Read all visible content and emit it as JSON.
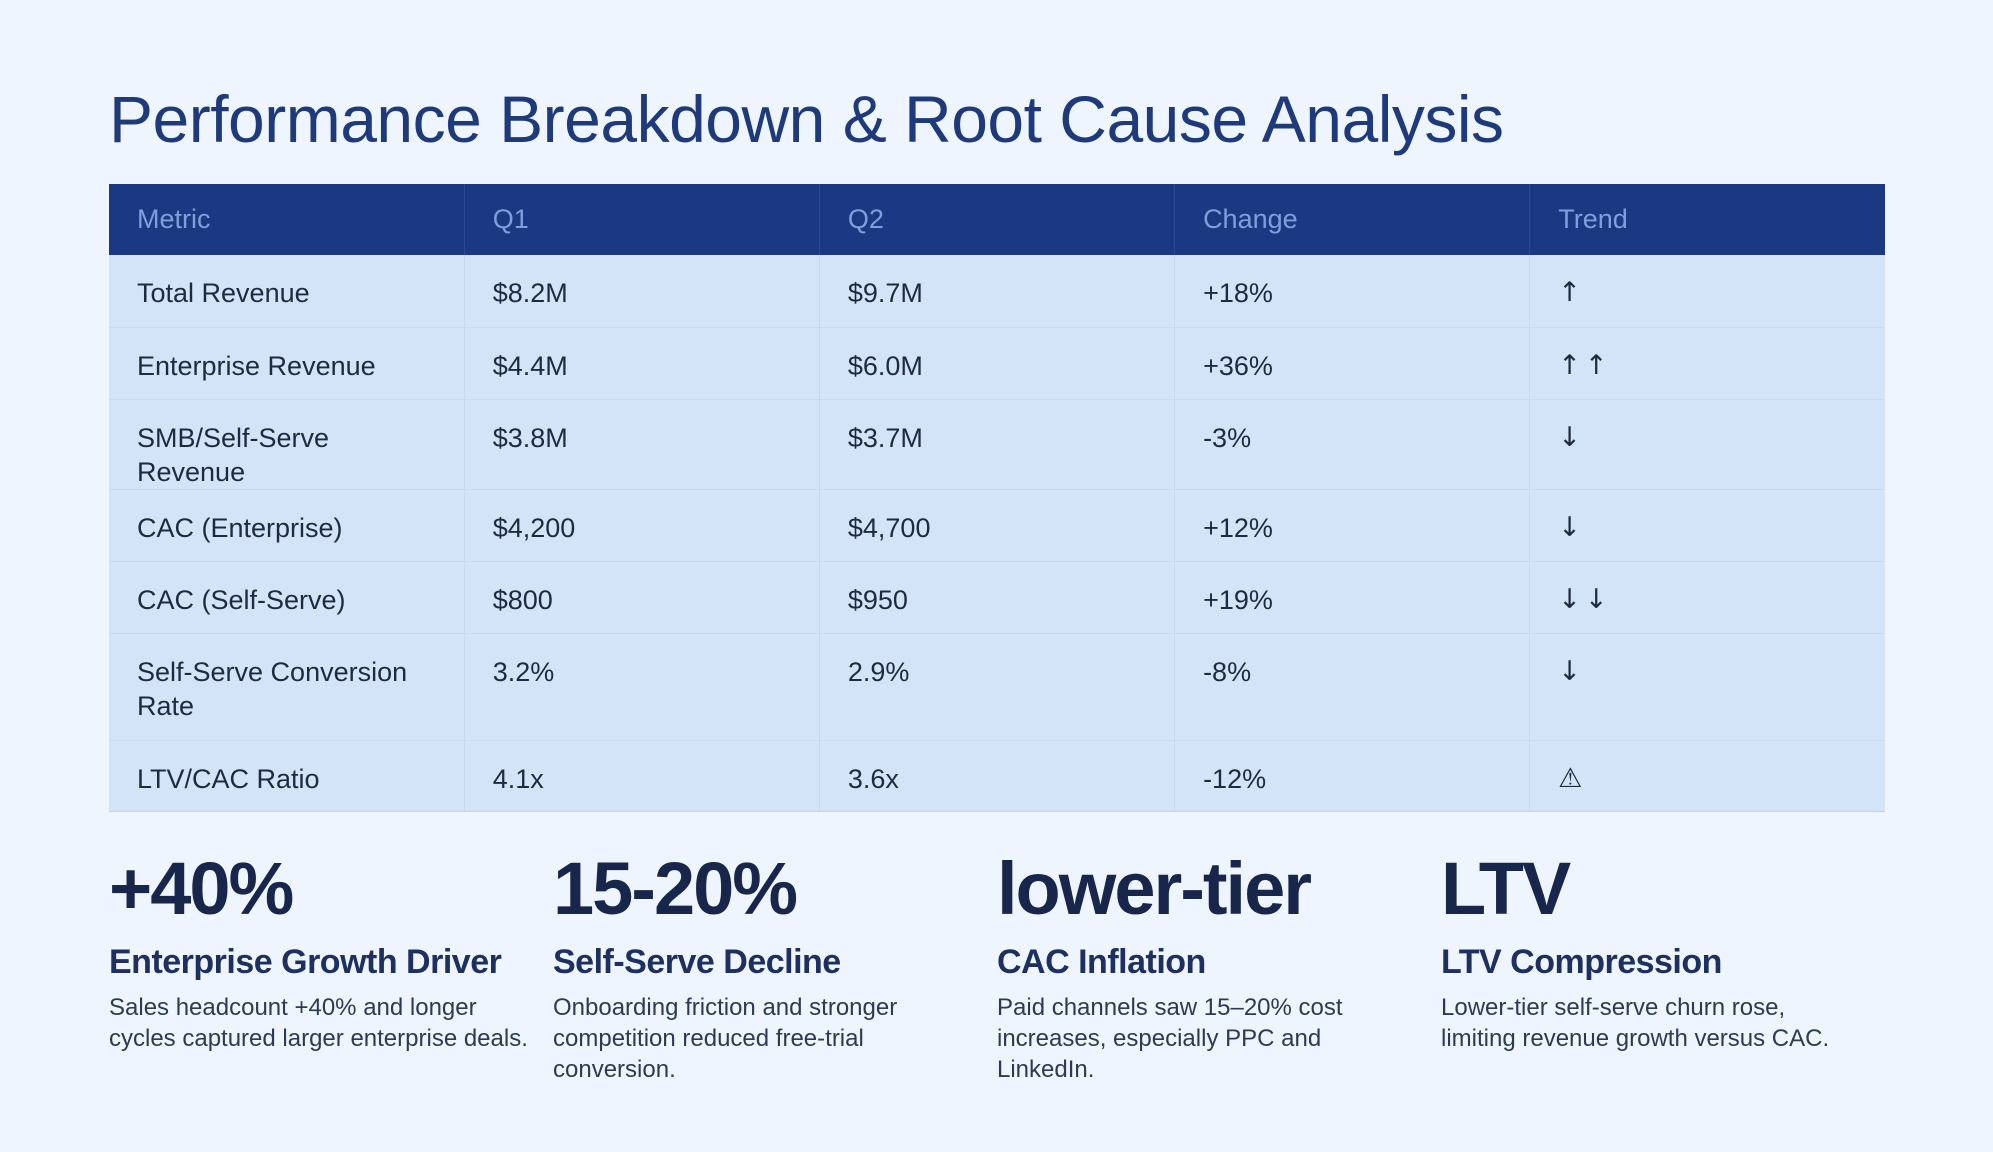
{
  "title": "Performance Breakdown & Root Cause Analysis",
  "table": {
    "headers": [
      "Metric",
      "Q1",
      "Q2",
      "Change",
      "Trend"
    ],
    "rows": [
      {
        "metric": "Total Revenue",
        "q1": "$8.2M",
        "q2": "$9.7M",
        "change": "+18%",
        "trend": "↑"
      },
      {
        "metric": "Enterprise Revenue",
        "q1": "$4.4M",
        "q2": "$6.0M",
        "change": "+36%",
        "trend": "↑↑"
      },
      {
        "metric": "SMB/Self-Serve Revenue",
        "q1": "$3.8M",
        "q2": "$3.7M",
        "change": "-3%",
        "trend": "↓"
      },
      {
        "metric": "CAC (Enterprise)",
        "q1": "$4,200",
        "q2": "$4,700",
        "change": "+12%",
        "trend": "↓"
      },
      {
        "metric": "CAC (Self-Serve)",
        "q1": "$800",
        "q2": "$950",
        "change": "+19%",
        "trend": "↓↓"
      },
      {
        "metric": "Self-Serve Conversion Rate",
        "q1": "3.2%",
        "q2": "2.9%",
        "change": "-8%",
        "trend": "↓"
      },
      {
        "metric": "LTV/CAC Ratio",
        "q1": "4.1x",
        "q2": "3.6x",
        "change": "-12%",
        "trend": "⚠"
      }
    ]
  },
  "cards": [
    {
      "stat": "+40%",
      "title": "Enterprise Growth Driver",
      "body": "Sales headcount +40% and longer cycles captured larger enterprise deals."
    },
    {
      "stat": "15-20%",
      "title": "Self-Serve Decline",
      "body": "Onboarding friction and stronger competition reduced free-trial conversion."
    },
    {
      "stat": "lower-tier",
      "title": "CAC Inflation",
      "body": "Paid channels saw 15–20% cost increases, especially PPC and LinkedIn."
    },
    {
      "stat": "LTV",
      "title": "LTV Compression",
      "body": "Lower-tier self-serve churn rose, limiting revenue growth versus CAC."
    }
  ]
}
